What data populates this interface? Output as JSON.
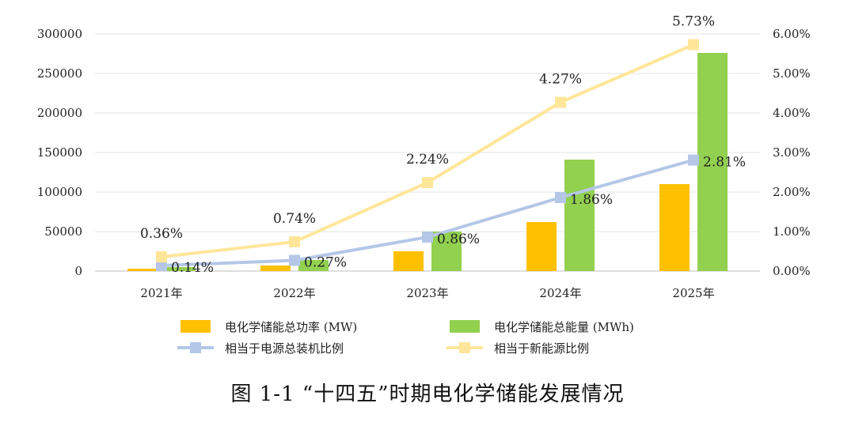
{
  "chart_data": {
    "type": "bar",
    "categories": [
      "2021年",
      "2022年",
      "2023年",
      "2024年",
      "2025年"
    ],
    "series": [
      {
        "name": "电化学储能总功率 (MW)",
        "kind": "bar",
        "axis": "left",
        "color": "#FFC000",
        "values": [
          3000,
          7000,
          25000,
          62000,
          110000
        ]
      },
      {
        "name": "电化学储能总能量 (MWh)",
        "kind": "bar",
        "axis": "left",
        "color": "#92D050",
        "values": [
          5000,
          14000,
          50000,
          141000,
          276000
        ]
      },
      {
        "name": "相当于电源总装机比例",
        "kind": "line",
        "axis": "right",
        "color": "#B4C7E7",
        "values": [
          0.14,
          0.27,
          0.86,
          1.86,
          2.81
        ],
        "labels": [
          "0.14%",
          "0.27%",
          "0.86%",
          "1.86%",
          "2.81%"
        ]
      },
      {
        "name": "相当于新能源比例",
        "kind": "line",
        "axis": "right",
        "color": "#FFE699",
        "values": [
          0.36,
          0.74,
          2.24,
          4.27,
          5.73
        ],
        "labels": [
          "0.36%",
          "0.74%",
          "2.24%",
          "4.27%",
          "5.73%"
        ]
      }
    ],
    "y_left": {
      "min": 0,
      "max": 300000,
      "ticks": [
        "0",
        "50000",
        "100000",
        "150000",
        "200000",
        "250000",
        "300000"
      ]
    },
    "y_right": {
      "min": 0,
      "max": 6,
      "ticks": [
        "0.00%",
        "1.00%",
        "2.00%",
        "3.00%",
        "4.00%",
        "5.00%",
        "6.00%"
      ]
    },
    "grid": true,
    "legend_position": "bottom",
    "caption": "图 1-1 “十四五”时期电化学储能发展情况"
  }
}
